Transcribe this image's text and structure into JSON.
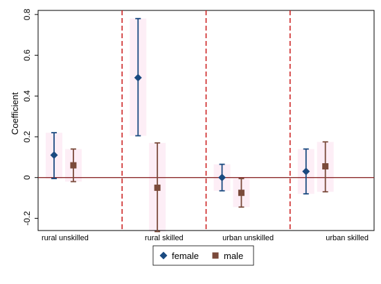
{
  "chart_data": {
    "type": "scatter",
    "subtype": "coefficient plot with confidence intervals",
    "ylabel": "Coefficient",
    "ylim": [
      -0.26,
      0.82
    ],
    "yticks": [
      -0.2,
      0,
      0.2,
      0.4,
      0.6,
      0.8
    ],
    "ytick_labels": [
      "-0.2",
      "0",
      "0.2",
      "0.4",
      "0.6",
      "0.8"
    ],
    "categories": [
      "rural unskilled",
      "rural skilled",
      "urban unskilled",
      "urban skilled"
    ],
    "reference_line": 0,
    "legend_position": "bottom",
    "series": [
      {
        "name": "female",
        "marker": "diamond",
        "values": [
          0.11,
          0.49,
          0.0,
          0.03
        ],
        "ci_low": [
          -0.005,
          0.205,
          -0.065,
          -0.08
        ],
        "ci_high": [
          0.22,
          0.78,
          0.065,
          0.14
        ]
      },
      {
        "name": "male",
        "marker": "square",
        "values": [
          0.06,
          -0.05,
          -0.075,
          0.055
        ],
        "ci_low": [
          -0.02,
          -0.265,
          -0.145,
          -0.07
        ],
        "ci_high": [
          0.14,
          0.17,
          -0.005,
          0.175
        ]
      }
    ],
    "colors": {
      "female": "#1a4a80",
      "male": "#7a4a3a",
      "reference_line": "#8b2a2a",
      "separator": "#cc2222",
      "ci_shade": "#fdeef6",
      "frame": "#000000"
    }
  }
}
